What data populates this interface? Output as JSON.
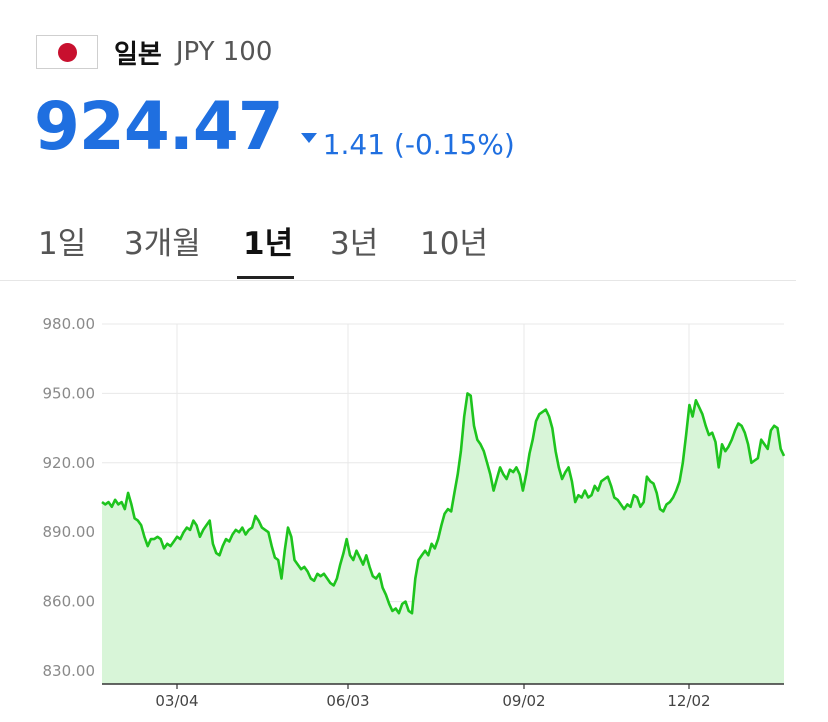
{
  "header": {
    "flag_icon": "japan-flag-icon",
    "country": "일본",
    "code": "JPY 100"
  },
  "quote": {
    "price": "924.47",
    "direction": "down",
    "change": "1.41 (-0.15%)",
    "color": "#1f6fe0"
  },
  "tabs": [
    {
      "label": "1일",
      "active": false
    },
    {
      "label": "3개월",
      "active": false
    },
    {
      "label": "1년",
      "active": true
    },
    {
      "label": "3년",
      "active": false
    },
    {
      "label": "10년",
      "active": false
    }
  ],
  "chart_data": {
    "type": "area",
    "ylim": [
      830,
      980
    ],
    "y_ticks": [
      "980.00",
      "950.00",
      "920.00",
      "890.00",
      "860.00",
      "830.00"
    ],
    "y_tick_values": [
      980,
      950,
      920,
      890,
      860,
      830
    ],
    "x_ticks": [
      "03/04",
      "06/03",
      "09/02",
      "12/02"
    ],
    "grid": true,
    "line_color": "#1ec41e",
    "fill_color": "#d8f5d8",
    "series": [
      {
        "values": [
          903,
          902,
          903,
          901,
          904,
          902,
          903,
          900,
          907,
          902,
          896,
          895,
          893,
          888,
          884,
          887,
          887,
          888,
          887,
          883,
          885,
          884,
          886,
          888,
          887,
          890,
          892,
          891,
          895,
          893,
          888,
          891,
          893,
          895,
          885,
          881,
          880,
          884,
          887,
          886,
          889,
          891,
          890,
          892,
          889,
          891,
          892,
          897,
          895,
          892,
          891,
          890,
          884,
          879,
          878,
          870,
          882,
          892,
          888,
          878,
          876,
          874,
          875,
          873,
          870,
          869,
          872,
          871,
          872,
          870,
          868,
          867,
          870,
          876,
          881,
          887,
          880,
          878,
          882,
          879,
          876,
          880,
          875,
          871,
          870,
          872,
          866,
          863,
          859,
          856,
          857,
          855,
          859,
          860,
          856,
          855,
          870,
          878,
          880,
          882,
          880,
          885,
          883,
          887,
          893,
          898,
          900,
          899,
          907,
          915,
          925,
          940,
          950,
          949,
          936,
          930,
          928,
          925,
          920,
          915,
          908,
          913,
          918,
          915,
          913,
          917,
          916,
          918,
          915,
          908,
          915,
          924,
          930,
          938,
          941,
          942,
          943,
          940,
          935,
          925,
          918,
          913,
          916,
          918,
          912,
          903,
          906,
          905,
          908,
          905,
          906,
          910,
          908,
          912,
          913,
          914,
          910,
          905,
          904,
          902,
          900,
          902,
          901,
          906,
          905,
          901,
          903,
          914,
          912,
          911,
          907,
          900,
          899,
          902,
          903,
          905,
          908,
          912,
          920,
          932,
          945,
          940,
          947,
          944,
          941,
          936,
          932,
          933,
          929,
          918,
          928,
          925,
          927,
          930,
          934,
          937,
          936,
          933,
          928,
          920,
          921,
          922,
          930,
          928,
          926,
          934,
          936,
          935,
          926,
          923
        ]
      }
    ]
  }
}
